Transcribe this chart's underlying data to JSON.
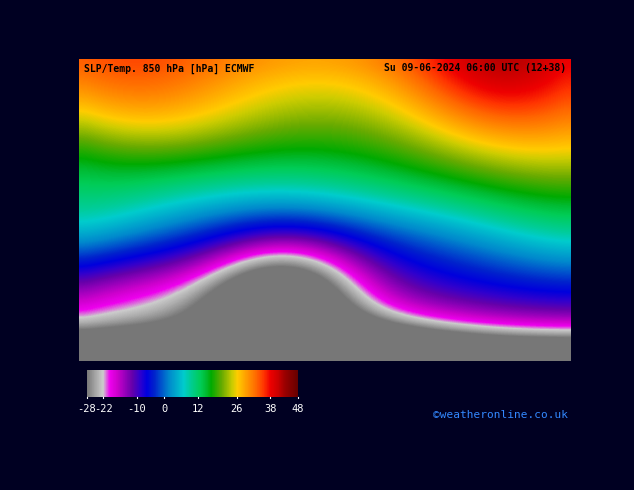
{
  "title_left": "SLP/Temp. 850 hPa [hPa] ECMWF",
  "title_right": "Su 09-06-2024 06:00 UTC (12+38)",
  "copyright": "©weatheronline.co.uk",
  "colorbar_ticks": [
    -28,
    -22,
    -10,
    0,
    12,
    26,
    38,
    48
  ],
  "vmin": -28,
  "vmax": 48,
  "fig_width": 6.34,
  "fig_height": 4.9,
  "dpi": 100,
  "bottom_bg": "#000022",
  "copyright_color": "#3388ff",
  "title_color": "#000000",
  "cmap_colors": [
    [
      0.0,
      "#777777"
    ],
    [
      0.045,
      "#aaaaaa"
    ],
    [
      0.077,
      "#cccccc"
    ],
    [
      0.11,
      "#ee00ee"
    ],
    [
      0.145,
      "#cc00cc"
    ],
    [
      0.18,
      "#9900bb"
    ],
    [
      0.215,
      "#6600aa"
    ],
    [
      0.25,
      "#3300cc"
    ],
    [
      0.285,
      "#0000dd"
    ],
    [
      0.32,
      "#0022cc"
    ],
    [
      0.355,
      "#0055cc"
    ],
    [
      0.39,
      "#0088cc"
    ],
    [
      0.425,
      "#00aacc"
    ],
    [
      0.46,
      "#00cccc"
    ],
    [
      0.49,
      "#00cc99"
    ],
    [
      0.515,
      "#00cc77"
    ],
    [
      0.54,
      "#00cc55"
    ],
    [
      0.565,
      "#00bb33"
    ],
    [
      0.59,
      "#00aa00"
    ],
    [
      0.615,
      "#33aa00"
    ],
    [
      0.64,
      "#66aa00"
    ],
    [
      0.665,
      "#99bb00"
    ],
    [
      0.69,
      "#cccc00"
    ],
    [
      0.715,
      "#ffcc00"
    ],
    [
      0.745,
      "#ffaa00"
    ],
    [
      0.775,
      "#ff8800"
    ],
    [
      0.805,
      "#ff6600"
    ],
    [
      0.84,
      "#ff3300"
    ],
    [
      0.87,
      "#ee0000"
    ],
    [
      0.905,
      "#cc0000"
    ],
    [
      0.94,
      "#990000"
    ],
    [
      1.0,
      "#660000"
    ]
  ]
}
